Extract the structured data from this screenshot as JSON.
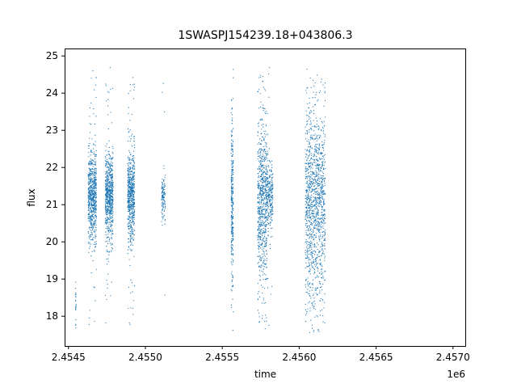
{
  "chart_data": {
    "type": "scatter",
    "title": "1SWASPJ154239.18+043806.3",
    "xlabel": "time",
    "ylabel": "flux",
    "x_offset_label": "1e6",
    "xlim": [
      2454475,
      2457080
    ],
    "ylim": [
      17.2,
      25.2
    ],
    "xticks": [
      2454500,
      2455000,
      2455500,
      2456000,
      2456500,
      2457000
    ],
    "xtick_labels": [
      "2.4545",
      "2.4550",
      "2.4555",
      "2.4560",
      "2.4565",
      "2.4570"
    ],
    "yticks": [
      18,
      19,
      20,
      21,
      22,
      23,
      24,
      25
    ],
    "ytick_labels": [
      "18",
      "19",
      "20",
      "21",
      "22",
      "23",
      "24",
      "25"
    ],
    "grid": false,
    "marker_color": "#1f77b4",
    "clusters": [
      {
        "x_start": 2454545,
        "x_end": 2454550,
        "y_center": 18.3,
        "spread": 0.5,
        "count": 25
      },
      {
        "x_start": 2454628,
        "x_end": 2454682,
        "y_center": 21.2,
        "spread": 0.6,
        "count": 700
      },
      {
        "x_start": 2454740,
        "x_end": 2454790,
        "y_center": 21.2,
        "spread": 0.55,
        "count": 700
      },
      {
        "x_start": 2454885,
        "x_end": 2454930,
        "y_center": 21.2,
        "spread": 0.6,
        "count": 650
      },
      {
        "x_start": 2455105,
        "x_end": 2455130,
        "y_center": 21.2,
        "spread": 0.3,
        "count": 120
      },
      {
        "x_start": 2455558,
        "x_end": 2455572,
        "y_center": 21.0,
        "spread": 1.1,
        "count": 300
      },
      {
        "x_start": 2455730,
        "x_end": 2455790,
        "y_center": 21.0,
        "spread": 1.1,
        "count": 700
      },
      {
        "x_start": 2455790,
        "x_end": 2455830,
        "y_center": 21.2,
        "spread": 0.5,
        "count": 250
      },
      {
        "x_start": 2456040,
        "x_end": 2456110,
        "y_center": 21.0,
        "spread": 1.3,
        "count": 700
      },
      {
        "x_start": 2456110,
        "x_end": 2456170,
        "y_center": 21.0,
        "spread": 1.2,
        "count": 550
      }
    ]
  }
}
